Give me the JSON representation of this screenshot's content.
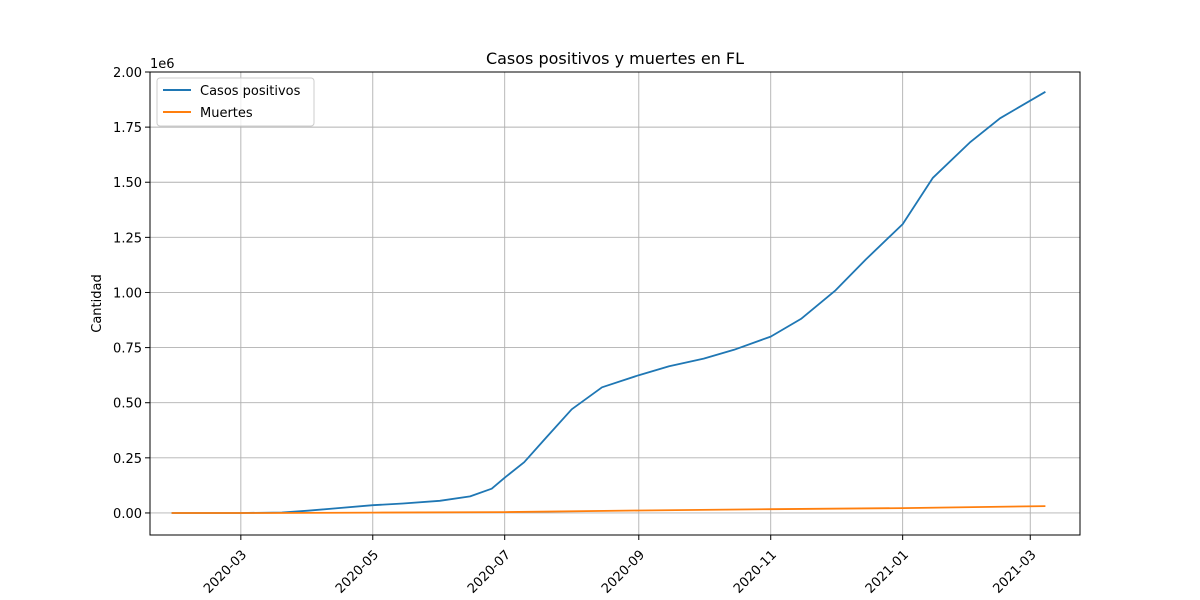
{
  "chart_data": {
    "type": "line",
    "title": "Casos positivos y muertes en FL",
    "xlabel": "",
    "ylabel": "Cantidad",
    "y_offset_label": "1e6",
    "y_scale": 1000000,
    "grid": true,
    "legend_position": "top-left",
    "xlim": [
      "2020-01-19",
      "2021-03-24"
    ],
    "ylim": [
      -100000,
      2000000
    ],
    "x_ticks": [
      "2020-03-01",
      "2020-05-01",
      "2020-07-01",
      "2020-09-01",
      "2020-11-01",
      "2021-01-01",
      "2021-03-01"
    ],
    "x_tick_labels": [
      "2020-03",
      "2020-05",
      "2020-07",
      "2020-09",
      "2020-11",
      "2021-01",
      "2021-03"
    ],
    "y_ticks": [
      0,
      250000,
      500000,
      750000,
      1000000,
      1250000,
      1500000,
      1750000,
      2000000
    ],
    "y_tick_labels": [
      "0.00",
      "0.25",
      "0.50",
      "0.75",
      "1.00",
      "1.25",
      "1.50",
      "1.75",
      "2.00"
    ],
    "series": [
      {
        "name": "Casos positivos",
        "color": "#1f77b4",
        "x": [
          "2020-01-29",
          "2020-03-01",
          "2020-03-20",
          "2020-04-01",
          "2020-04-15",
          "2020-05-01",
          "2020-05-15",
          "2020-06-01",
          "2020-06-15",
          "2020-06-25",
          "2020-07-01",
          "2020-07-10",
          "2020-07-20",
          "2020-08-01",
          "2020-08-15",
          "2020-09-01",
          "2020-09-15",
          "2020-10-01",
          "2020-10-15",
          "2020-11-01",
          "2020-11-15",
          "2020-12-01",
          "2020-12-15",
          "2021-01-01",
          "2021-01-15",
          "2021-02-01",
          "2021-02-15",
          "2021-03-08"
        ],
        "values": [
          0,
          0,
          2000,
          10000,
          22000,
          35000,
          43000,
          55000,
          75000,
          110000,
          160000,
          230000,
          340000,
          470000,
          570000,
          625000,
          665000,
          700000,
          740000,
          800000,
          880000,
          1010000,
          1150000,
          1310000,
          1520000,
          1680000,
          1790000,
          1910000
        ]
      },
      {
        "name": "Muertes",
        "color": "#ff7f0e",
        "x": [
          "2020-01-29",
          "2020-03-15",
          "2020-05-01",
          "2020-07-01",
          "2020-09-01",
          "2020-11-01",
          "2021-01-01",
          "2021-03-08"
        ],
        "values": [
          0,
          0,
          1400,
          3800,
          11000,
          17000,
          22000,
          31000
        ]
      }
    ]
  }
}
